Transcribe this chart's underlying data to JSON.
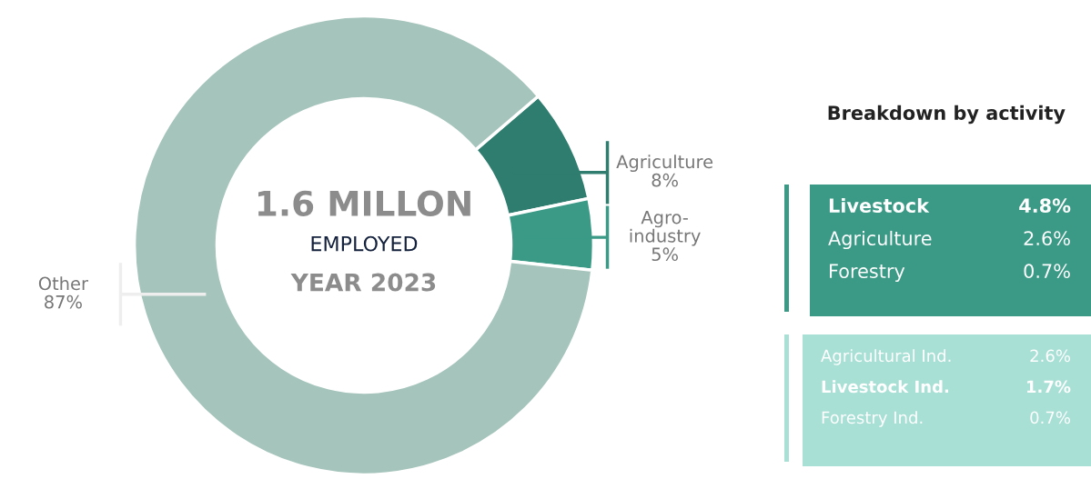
{
  "chart_data": [
    {
      "type": "donut",
      "categories": [
        "Agriculture",
        "Agro-\nindustry",
        "Other"
      ],
      "values": [
        8,
        5,
        87
      ],
      "value_labels": [
        "8%",
        "5%",
        "87%"
      ],
      "colors": [
        "#2e7d6e",
        "#3a9a86",
        "#a5c4bb"
      ],
      "annotations": [
        "1.6 MILLON",
        "EMPLOYED",
        "YEAR 2023"
      ]
    },
    {
      "type": "other",
      "title": "Breakdown by activity",
      "categories": [
        "Livestock",
        "Agriculture",
        "Forestry",
        "Agricultural Ind.",
        "Livestock Ind.",
        "Forestry Ind."
      ],
      "value_labels": [
        "4.8%",
        "2.6%",
        "0.7%",
        "2.6%",
        "1.7%",
        "0.7%"
      ],
      "colors": [
        "#3a9a86",
        "#3a9a86",
        "#3a9a86",
        "#a8e0d5",
        "#a8e0d5",
        "#a8e0d5"
      ]
    }
  ]
}
